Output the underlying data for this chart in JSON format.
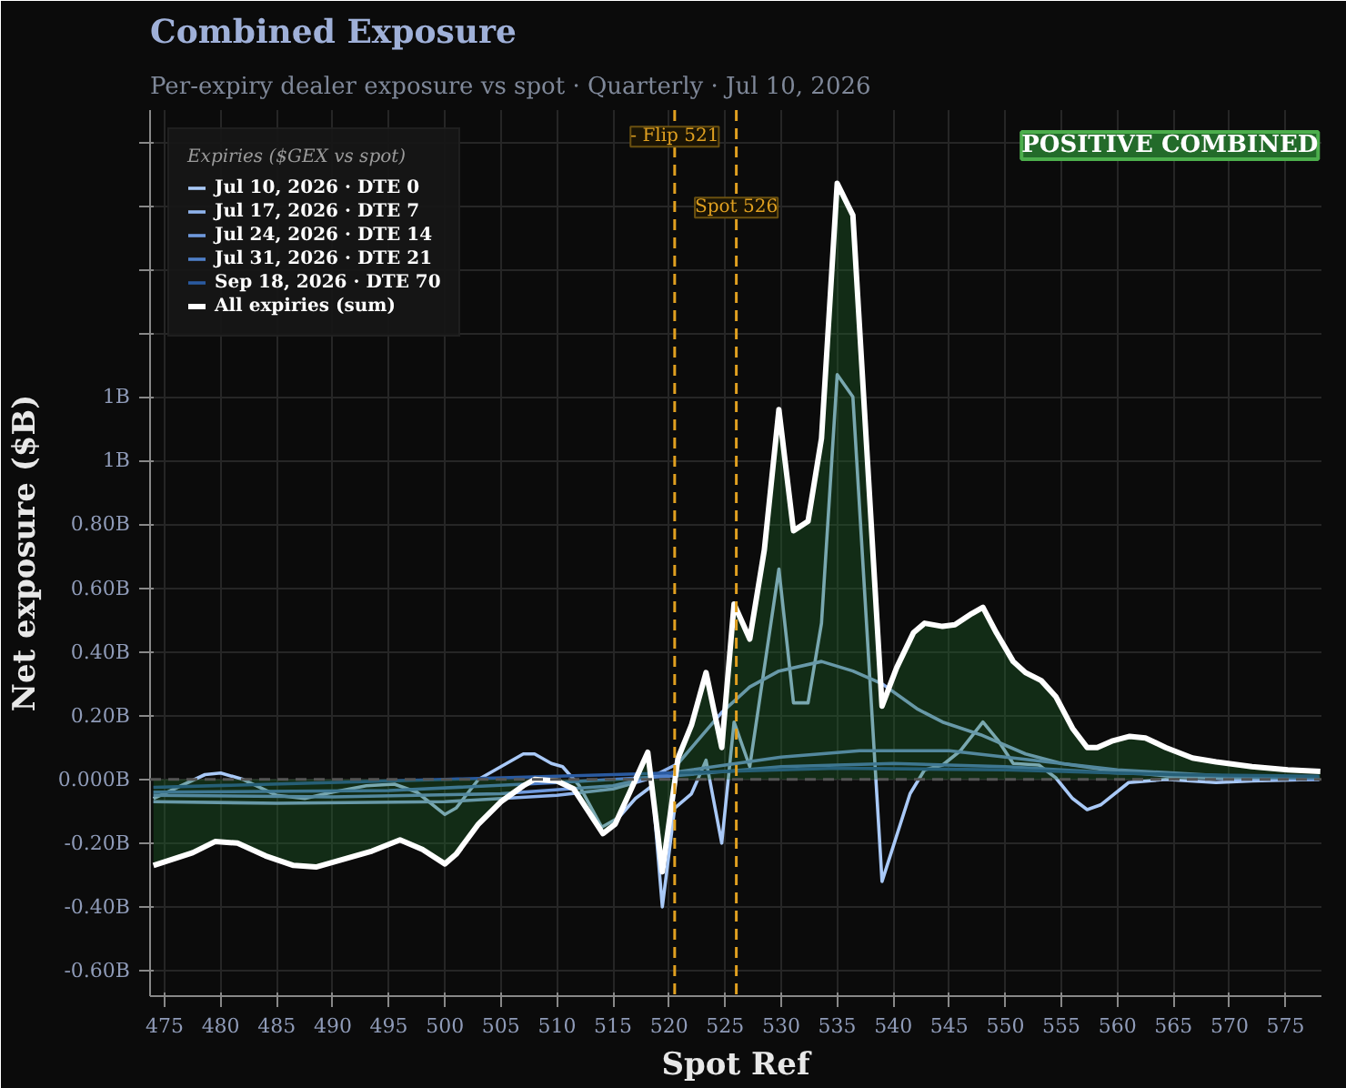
{
  "chart_data": {
    "type": "line",
    "title": "Combined Exposure",
    "subtitle": "Per-expiry dealer exposure vs spot · Quarterly · Jul 10, 2026",
    "xlabel": "Spot Ref",
    "ylabel": "Net exposure ($B)",
    "legend_title": "Expiries ($GEX vs spot)",
    "annotations": [
      "POSITIVE COMBINED"
    ],
    "xlim": [
      473.7,
      578.2
    ],
    "xticks": [
      475,
      480,
      485,
      490,
      495,
      500,
      505,
      510,
      515,
      520,
      525,
      530,
      535,
      540,
      545,
      550,
      555,
      560,
      565,
      570,
      575
    ],
    "ylim": [
      -0.68,
      2.1
    ],
    "yticks": [
      {
        "value": -0.6,
        "label": "-0.60B"
      },
      {
        "value": -0.4,
        "label": "-0.40B"
      },
      {
        "value": -0.2,
        "label": "-0.20B"
      },
      {
        "value": 0,
        "label": "0.000B"
      },
      {
        "value": 0.2,
        "label": "0.20B"
      },
      {
        "value": 0.4,
        "label": "0.40B"
      },
      {
        "value": 0.6,
        "label": "0.60B"
      },
      {
        "value": 0.8,
        "label": "0.80B"
      },
      {
        "value": 1.0,
        "label": "1B"
      },
      {
        "value": 1.2,
        "label": "1B"
      },
      {
        "value": 1.4,
        "label": null
      },
      {
        "value": 1.6,
        "label": null
      },
      {
        "value": 1.8,
        "label": null
      },
      {
        "value": 2.0,
        "label": null
      }
    ],
    "grid": true,
    "legend": "top left",
    "line_style": "solid",
    "marker": "none",
    "ref_lines": [
      {
        "axis": "y",
        "value": 0,
        "label": null,
        "color": "#555555",
        "line_style": "dashed"
      },
      {
        "axis": "x",
        "value": 520.5,
        "label": "- Flip 521",
        "color": "#e0a020",
        "line_style": "dashed"
      },
      {
        "axis": "x",
        "value": 526,
        "label": "Spot 526",
        "color": "#e0a020",
        "line_style": "dashed"
      }
    ],
    "series": [
      {
        "name": "Jul 10, 2026 · DTE 0",
        "color": "#a9c9f7",
        "x": [
          474,
          478.6,
          480,
          482,
          485,
          487.5,
          490,
          493,
          495.5,
          497.5,
          500,
          501,
          503,
          505,
          507,
          508,
          509.5,
          510.5,
          512,
          514,
          515.5,
          517,
          518.5,
          519.4,
          520.5,
          522,
          523.3,
          524.7,
          525.8,
          527.2,
          529.8,
          531.1,
          532.4,
          533.6,
          535,
          536.4,
          539,
          541.5,
          542.8,
          544.4,
          546,
          548,
          549.4,
          550.7,
          553,
          554.5,
          556,
          557.3,
          558.5,
          561,
          564.3,
          568.8,
          572,
          578
        ],
        "values": [
          -0.06,
          0.015,
          0.02,
          0.0,
          -0.05,
          -0.06,
          -0.04,
          -0.02,
          -0.015,
          -0.04,
          -0.11,
          -0.09,
          0.0,
          0.04,
          0.08,
          0.08,
          0.05,
          0.04,
          -0.02,
          -0.15,
          -0.12,
          -0.06,
          -0.02,
          -0.4,
          -0.09,
          -0.045,
          0.06,
          -0.2,
          0.18,
          0.04,
          0.66,
          0.24,
          0.24,
          0.49,
          1.27,
          1.2,
          -0.32,
          -0.045,
          0.03,
          0.045,
          0.09,
          0.18,
          0.12,
          0.05,
          0.045,
          0.005,
          -0.06,
          -0.095,
          -0.08,
          -0.01,
          0.0,
          -0.01,
          -0.005,
          0.0
        ]
      },
      {
        "name": "Jul 17, 2026 · DTE 7",
        "color": "#8fb3ec",
        "x": [
          474,
          485,
          500,
          510,
          515,
          518,
          520.8,
          524.7,
          527.2,
          529.8,
          533.6,
          536.4,
          539,
          542.2,
          544.4,
          547.8,
          551.8,
          555,
          559,
          564.6,
          571,
          578
        ],
        "values": [
          -0.07,
          -0.075,
          -0.07,
          -0.05,
          -0.03,
          0.0,
          0.05,
          0.21,
          0.29,
          0.34,
          0.37,
          0.34,
          0.3,
          0.22,
          0.18,
          0.14,
          0.08,
          0.05,
          0.03,
          0.01,
          0.0,
          0.0
        ]
      },
      {
        "name": "Jul 24, 2026 · DTE 14",
        "color": "#6f99dc",
        "x": [
          474,
          490,
          505,
          515,
          520,
          525,
          530,
          537,
          545,
          550,
          555,
          560,
          570,
          578
        ],
        "values": [
          -0.05,
          -0.055,
          -0.045,
          -0.02,
          0.02,
          0.045,
          0.07,
          0.09,
          0.09,
          0.07,
          0.05,
          0.03,
          0.01,
          0.0
        ]
      },
      {
        "name": "Jul 31, 2026 · DTE 21",
        "color": "#4f7fc8",
        "x": [
          474,
          495,
          510,
          520,
          530,
          540,
          550,
          560,
          570,
          578
        ],
        "values": [
          -0.04,
          -0.035,
          -0.01,
          0.01,
          0.04,
          0.05,
          0.04,
          0.02,
          0.01,
          0.005
        ]
      },
      {
        "name": "Sep 18, 2026 · DTE 70",
        "color": "#2a5aa0",
        "x": [
          474,
          500,
          520,
          535,
          550,
          565,
          578
        ],
        "values": [
          -0.025,
          0.0,
          0.02,
          0.035,
          0.03,
          0.015,
          0.01
        ]
      },
      {
        "name": "All expiries (sum)",
        "color": "#ffffff",
        "type": "area",
        "x": [
          474,
          477.5,
          479.5,
          481.5,
          484,
          486.5,
          488.5,
          491,
          493.5,
          496,
          498,
          500,
          501,
          503,
          505,
          507,
          508,
          510,
          511.5,
          514.1,
          515.2,
          516.5,
          518.1,
          519.4,
          520.8,
          522,
          523.3,
          524.7,
          525.8,
          527.2,
          528.5,
          529.8,
          531.1,
          532.4,
          533.6,
          535,
          536.4,
          537.7,
          539,
          540.3,
          541.8,
          542.8,
          544.4,
          545.5,
          547,
          548,
          549.2,
          550.7,
          551.8,
          553.2,
          554.5,
          556,
          557.3,
          558.2,
          559.5,
          561.1,
          562.5,
          564.3,
          566.7,
          568.8,
          572,
          575.2,
          578.1
        ],
        "values": [
          -0.27,
          -0.23,
          -0.195,
          -0.2,
          -0.24,
          -0.27,
          -0.275,
          -0.25,
          -0.225,
          -0.19,
          -0.22,
          -0.265,
          -0.235,
          -0.14,
          -0.07,
          -0.02,
          0.0,
          -0.005,
          -0.03,
          -0.17,
          -0.14,
          -0.04,
          0.085,
          -0.29,
          0.067,
          0.17,
          0.335,
          0.1,
          0.55,
          0.44,
          0.72,
          1.16,
          0.78,
          0.81,
          1.07,
          1.87,
          1.77,
          1.0,
          0.23,
          0.35,
          0.46,
          0.49,
          0.48,
          0.485,
          0.52,
          0.54,
          0.46,
          0.37,
          0.335,
          0.31,
          0.26,
          0.16,
          0.1,
          0.1,
          0.12,
          0.135,
          0.13,
          0.1,
          0.067,
          0.055,
          0.04,
          0.03,
          0.025
        ]
      }
    ]
  }
}
